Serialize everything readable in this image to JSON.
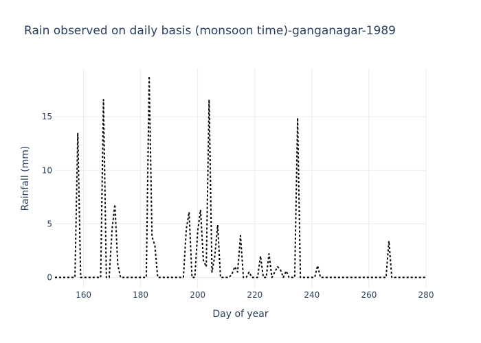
{
  "chart_data": {
    "type": "line",
    "title": "Rain observed on daily basis (monsoon time)-ganganagar-1989",
    "xlabel": "Day of year",
    "ylabel": "Rainfall (mm)",
    "xlim": [
      150,
      280
    ],
    "ylim": [
      -1,
      19.5
    ],
    "xticks": [
      160,
      180,
      200,
      220,
      240,
      260,
      280
    ],
    "yticks": [
      0,
      5,
      10,
      15
    ],
    "grid": true,
    "line_style": "dotted",
    "line_color": "#000000",
    "series": [
      {
        "x": [
          150,
          151,
          152,
          153,
          154,
          155,
          156,
          157,
          158,
          159,
          160,
          161,
          162,
          163,
          164,
          165,
          166,
          167,
          168,
          169,
          170,
          171,
          172,
          173,
          174,
          175,
          176,
          177,
          178,
          179,
          180,
          181,
          182,
          183,
          184,
          185,
          186,
          187,
          188,
          189,
          190,
          191,
          192,
          193,
          194,
          195,
          196,
          197,
          198,
          199,
          200,
          201,
          202,
          203,
          204,
          205,
          206,
          207,
          208,
          209,
          210,
          211,
          212,
          213,
          214,
          215,
          216,
          217,
          218,
          219,
          220,
          221,
          222,
          223,
          224,
          225,
          226,
          227,
          228,
          229,
          230,
          231,
          232,
          233,
          234,
          235,
          236,
          237,
          238,
          239,
          240,
          241,
          242,
          243,
          244,
          245,
          246,
          247,
          248,
          249,
          250,
          251,
          252,
          253,
          254,
          255,
          256,
          257,
          258,
          259,
          260,
          261,
          262,
          263,
          264,
          265,
          266,
          267,
          268,
          269,
          270,
          271,
          272,
          273,
          274,
          275,
          276,
          277,
          278,
          279,
          280
        ],
        "values": [
          0,
          0,
          0,
          0,
          0,
          0,
          0,
          0,
          13.5,
          0,
          0,
          0,
          0,
          0,
          0,
          0,
          0,
          16.6,
          0,
          0,
          4.5,
          6.8,
          1.2,
          0,
          0,
          0,
          0,
          0,
          0,
          0,
          0,
          0,
          0,
          18.8,
          3.8,
          3.0,
          0,
          0,
          0,
          0,
          0,
          0,
          0,
          0,
          0,
          0,
          4.5,
          6.1,
          0,
          0,
          4.3,
          6.3,
          1.6,
          1.0,
          16.6,
          0.5,
          2.0,
          4.9,
          0,
          0,
          0,
          0,
          0.3,
          1.0,
          0.5,
          3.9,
          0,
          0,
          0.5,
          0,
          0,
          0,
          2.0,
          0,
          0,
          2.2,
          0,
          0.5,
          1.0,
          0.7,
          0,
          0.6,
          0,
          0,
          0,
          14.9,
          0,
          0,
          0,
          0,
          0,
          0,
          1.1,
          0,
          0,
          0,
          0,
          0,
          0,
          0,
          0,
          0,
          0,
          0,
          0,
          0,
          0,
          0,
          0,
          0,
          0,
          0,
          0,
          0,
          0,
          0,
          0,
          3.4,
          0,
          0,
          0,
          0,
          0,
          0,
          0,
          0,
          0,
          0,
          0,
          0,
          0
        ]
      }
    ]
  }
}
